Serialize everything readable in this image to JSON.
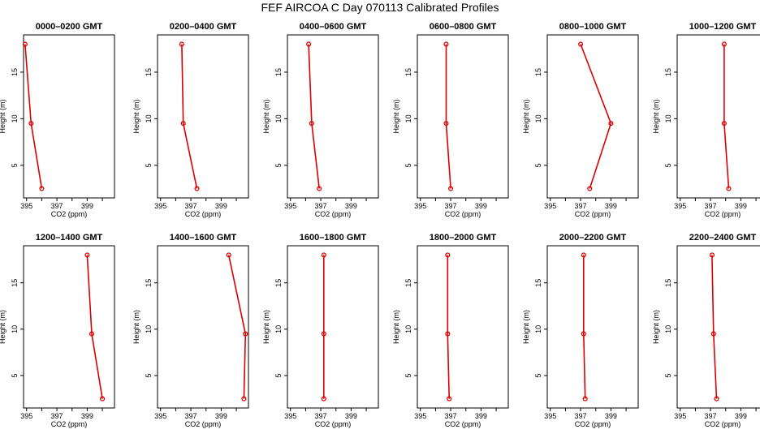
{
  "title": "FEF AIRCOA C  Day 070113  Calibrated Profiles",
  "colors": {
    "series": "#dd0000",
    "axis": "#000000",
    "background": "#ffffff"
  },
  "chart_data": [
    {
      "type": "line",
      "title": "0000–0200 GMT",
      "xlabel": "CO2 (ppm)",
      "ylabel": "Height (m)",
      "xlim": [
        394.8,
        400.8
      ],
      "ylim": [
        1.5,
        19
      ],
      "xticks": [
        395,
        397,
        399
      ],
      "xticks_minor": [
        396,
        398,
        400
      ],
      "yticks": [
        5,
        10,
        15
      ],
      "x": [
        394.9,
        395.3,
        396.0
      ],
      "y": [
        18,
        9.5,
        2.5
      ]
    },
    {
      "type": "line",
      "title": "0200–0400 GMT",
      "xlabel": "CO2 (ppm)",
      "ylabel": "Height (m)",
      "xlim": [
        394.8,
        400.8
      ],
      "ylim": [
        1.5,
        19
      ],
      "xticks": [
        395,
        397,
        399
      ],
      "xticks_minor": [
        396,
        398,
        400
      ],
      "yticks": [
        5,
        10,
        15
      ],
      "x": [
        396.4,
        396.5,
        397.4
      ],
      "y": [
        18,
        9.5,
        2.5
      ]
    },
    {
      "type": "line",
      "title": "0400–0600 GMT",
      "xlabel": "CO2 (ppm)",
      "ylabel": "Height (m)",
      "xlim": [
        394.8,
        400.8
      ],
      "ylim": [
        1.5,
        19
      ],
      "xticks": [
        395,
        397,
        399
      ],
      "xticks_minor": [
        396,
        398,
        400
      ],
      "yticks": [
        5,
        10,
        15
      ],
      "x": [
        396.2,
        396.4,
        396.9
      ],
      "y": [
        18,
        9.5,
        2.5
      ]
    },
    {
      "type": "line",
      "title": "0600–0800 GMT",
      "xlabel": "CO2 (ppm)",
      "ylabel": "Height (m)",
      "xlim": [
        394.8,
        400.8
      ],
      "ylim": [
        1.5,
        19
      ],
      "xticks": [
        395,
        397,
        399
      ],
      "xticks_minor": [
        396,
        398,
        400
      ],
      "yticks": [
        5,
        10,
        15
      ],
      "x": [
        396.7,
        396.7,
        397.0
      ],
      "y": [
        18,
        9.5,
        2.5
      ]
    },
    {
      "type": "line",
      "title": "0800–1000 GMT",
      "xlabel": "CO2 (ppm)",
      "ylabel": "Height (m)",
      "xlim": [
        394.8,
        400.8
      ],
      "ylim": [
        1.5,
        19
      ],
      "xticks": [
        395,
        397,
        399
      ],
      "xticks_minor": [
        396,
        398,
        400
      ],
      "yticks": [
        5,
        10,
        15
      ],
      "x": [
        397.0,
        399.0,
        397.6
      ],
      "y": [
        18,
        9.5,
        2.5
      ]
    },
    {
      "type": "line",
      "title": "1000–1200 GMT",
      "xlabel": "CO2 (ppm)",
      "ylabel": "Height (m)",
      "xlim": [
        394.8,
        400.8
      ],
      "ylim": [
        1.5,
        19
      ],
      "xticks": [
        395,
        397,
        399
      ],
      "xticks_minor": [
        396,
        398,
        400
      ],
      "yticks": [
        5,
        10,
        15
      ],
      "x": [
        397.9,
        397.9,
        398.2
      ],
      "y": [
        18,
        9.5,
        2.5
      ]
    },
    {
      "type": "line",
      "title": "1200–1400 GMT",
      "xlabel": "CO2 (ppm)",
      "ylabel": "Height (m)",
      "xlim": [
        394.8,
        400.8
      ],
      "ylim": [
        1.5,
        19
      ],
      "xticks": [
        395,
        397,
        399
      ],
      "xticks_minor": [
        396,
        398,
        400
      ],
      "yticks": [
        5,
        10,
        15
      ],
      "x": [
        399.0,
        399.3,
        400.0
      ],
      "y": [
        18,
        9.5,
        2.5
      ]
    },
    {
      "type": "line",
      "title": "1400–1600 GMT",
      "xlabel": "CO2 (ppm)",
      "ylabel": "Height (m)",
      "xlim": [
        394.8,
        400.8
      ],
      "ylim": [
        1.5,
        19
      ],
      "xticks": [
        395,
        397,
        399
      ],
      "xticks_minor": [
        396,
        398,
        400
      ],
      "yticks": [
        5,
        10,
        15
      ],
      "x": [
        399.5,
        400.6,
        400.5
      ],
      "y": [
        18,
        9.5,
        2.5
      ]
    },
    {
      "type": "line",
      "title": "1600–1800 GMT",
      "xlabel": "CO2 (ppm)",
      "ylabel": "Height (m)",
      "xlim": [
        394.8,
        400.8
      ],
      "ylim": [
        1.5,
        19
      ],
      "xticks": [
        395,
        397,
        399
      ],
      "xticks_minor": [
        396,
        398,
        400
      ],
      "yticks": [
        5,
        10,
        15
      ],
      "x": [
        397.2,
        397.2,
        397.2
      ],
      "y": [
        18,
        9.5,
        2.5
      ]
    },
    {
      "type": "line",
      "title": "1800–2000 GMT",
      "xlabel": "CO2 (ppm)",
      "ylabel": "Height (m)",
      "xlim": [
        394.8,
        400.8
      ],
      "ylim": [
        1.5,
        19
      ],
      "xticks": [
        395,
        397,
        399
      ],
      "xticks_minor": [
        396,
        398,
        400
      ],
      "yticks": [
        5,
        10,
        15
      ],
      "x": [
        396.8,
        396.8,
        396.9
      ],
      "y": [
        18,
        9.5,
        2.5
      ]
    },
    {
      "type": "line",
      "title": "2000–2200 GMT",
      "xlabel": "CO2 (ppm)",
      "ylabel": "Height (m)",
      "xlim": [
        394.8,
        400.8
      ],
      "ylim": [
        1.5,
        19
      ],
      "xticks": [
        395,
        397,
        399
      ],
      "xticks_minor": [
        396,
        398,
        400
      ],
      "yticks": [
        5,
        10,
        15
      ],
      "x": [
        397.2,
        397.2,
        397.3
      ],
      "y": [
        18,
        9.5,
        2.5
      ]
    },
    {
      "type": "line",
      "title": "2200–2400 GMT",
      "xlabel": "CO2 (ppm)",
      "ylabel": "Height (m)",
      "xlim": [
        394.8,
        400.8
      ],
      "ylim": [
        1.5,
        19
      ],
      "xticks": [
        395,
        397,
        399
      ],
      "xticks_minor": [
        396,
        398,
        400
      ],
      "yticks": [
        5,
        10,
        15
      ],
      "x": [
        397.1,
        397.2,
        397.4
      ],
      "y": [
        18,
        9.5,
        2.5
      ]
    }
  ]
}
